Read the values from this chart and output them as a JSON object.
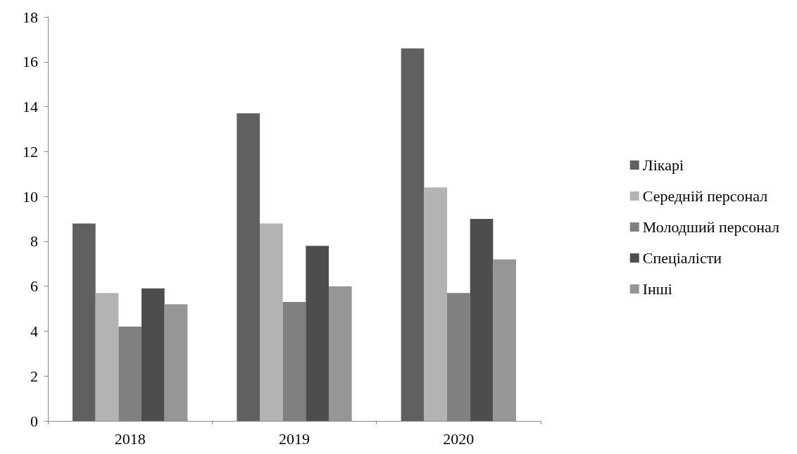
{
  "chart_data": {
    "type": "bar",
    "categories": [
      "2018",
      "2019",
      "2020"
    ],
    "series": [
      {
        "name": "Лікарі",
        "color": "#606060",
        "values": [
          8.8,
          13.7,
          16.6
        ]
      },
      {
        "name": "Середній персонал",
        "color": "#b3b3b3",
        "values": [
          5.7,
          8.8,
          10.4
        ]
      },
      {
        "name": "Молодший персонал",
        "color": "#808080",
        "values": [
          4.2,
          5.3,
          5.7
        ]
      },
      {
        "name": "Спеціалісти",
        "color": "#4d4d4d",
        "values": [
          5.9,
          7.8,
          9.0
        ]
      },
      {
        "name": "Інші",
        "color": "#969696",
        "values": [
          5.2,
          6.0,
          7.2
        ]
      }
    ],
    "ylim": [
      0,
      18
    ],
    "yticks": [
      0,
      2,
      4,
      6,
      8,
      10,
      12,
      14,
      16,
      18
    ],
    "grid": false,
    "legend": "right"
  }
}
